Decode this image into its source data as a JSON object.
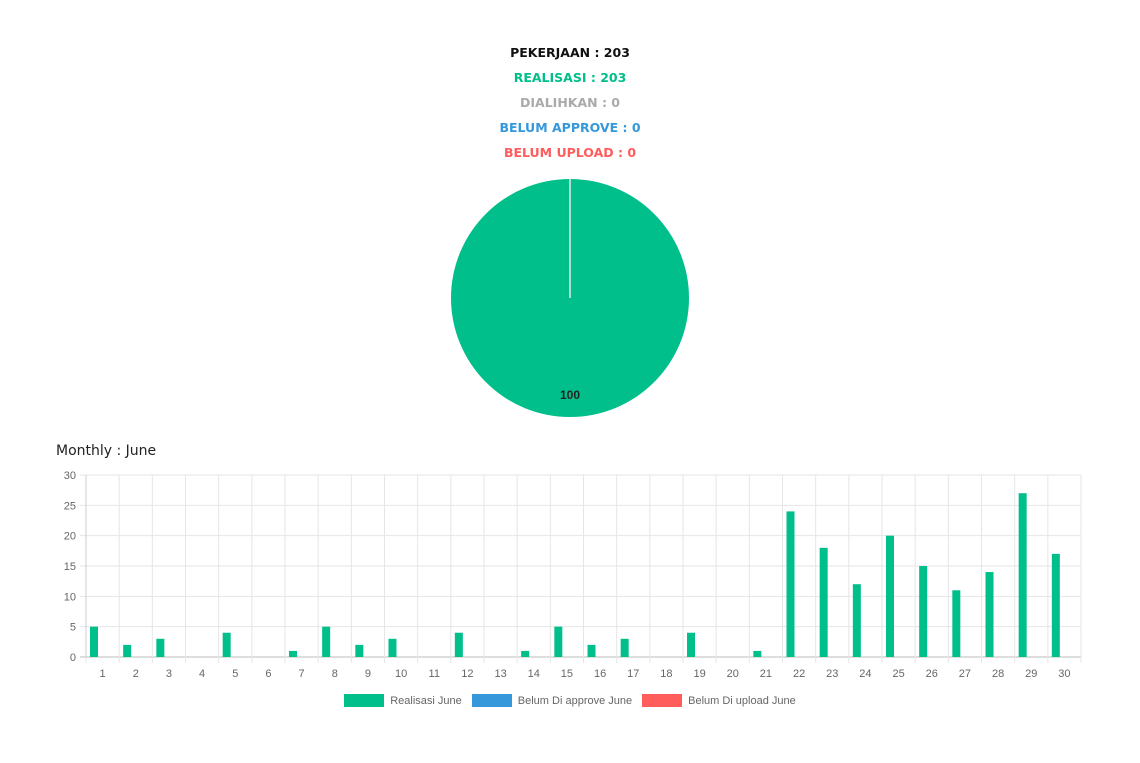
{
  "summary": {
    "pekerjaan": "PEKERJAAN : 203",
    "realisasi": "REALISASI : 203",
    "dialihkan": "DIALIHKAN : 0",
    "belum_approve": "BELUM APPROVE : 0",
    "belum_upload": "BELUM UPLOAD : 0"
  },
  "colors": {
    "black": "#111111",
    "green": "#00bf8a",
    "gray": "#aaaaaa",
    "blue": "#3498db",
    "red": "#ff5c5c"
  },
  "monthly_title": "Monthly : June",
  "chart_data": [
    {
      "type": "pie",
      "slices": [
        {
          "label": "Realisasi",
          "value": 100,
          "color": "#00bf8a"
        },
        {
          "label": "Dialihkan",
          "value": 0,
          "color": "#aaaaaa"
        },
        {
          "label": "Belum Approve",
          "value": 0,
          "color": "#3498db"
        },
        {
          "label": "Belum Upload",
          "value": 0,
          "color": "#ff5c5c"
        }
      ],
      "data_label": "100"
    },
    {
      "type": "bar",
      "categories": [
        "1",
        "2",
        "3",
        "4",
        "5",
        "6",
        "7",
        "8",
        "9",
        "10",
        "11",
        "12",
        "13",
        "14",
        "15",
        "16",
        "17",
        "18",
        "19",
        "20",
        "21",
        "22",
        "23",
        "24",
        "25",
        "26",
        "27",
        "28",
        "29",
        "30"
      ],
      "series": [
        {
          "name": "Realisasi June",
          "color": "#00bf8a",
          "values": [
            5,
            2,
            3,
            0,
            4,
            0,
            1,
            5,
            2,
            3,
            0,
            4,
            0,
            1,
            5,
            2,
            3,
            0,
            4,
            0,
            1,
            24,
            18,
            12,
            20,
            15,
            11,
            14,
            27,
            17
          ]
        },
        {
          "name": "Belum Di approve June",
          "color": "#3498db",
          "values": [
            0,
            0,
            0,
            0,
            0,
            0,
            0,
            0,
            0,
            0,
            0,
            0,
            0,
            0,
            0,
            0,
            0,
            0,
            0,
            0,
            0,
            0,
            0,
            0,
            0,
            0,
            0,
            0,
            0,
            0
          ]
        },
        {
          "name": "Belum Di upload June",
          "color": "#ff5c5c",
          "values": [
            0,
            0,
            0,
            0,
            0,
            0,
            0,
            0,
            0,
            0,
            0,
            0,
            0,
            0,
            0,
            0,
            0,
            0,
            0,
            0,
            0,
            0,
            0,
            0,
            0,
            0,
            0,
            0,
            0,
            0
          ]
        }
      ],
      "ylim": [
        0,
        30
      ],
      "yticks": [
        0,
        5,
        10,
        15,
        20,
        25,
        30
      ],
      "grid": true,
      "legend_position": "bottom"
    }
  ]
}
